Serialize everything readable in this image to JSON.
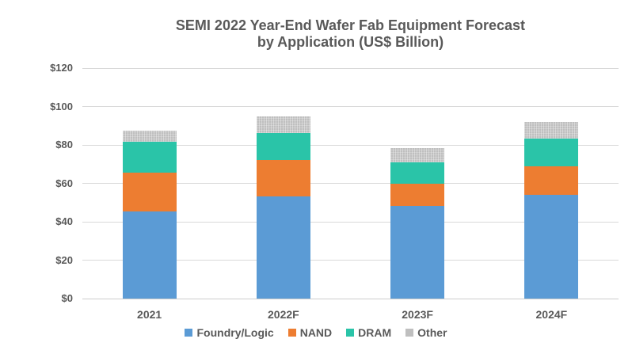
{
  "title": {
    "line1": "SEMI 2022 Year-End Wafer Fab Equipment Forecast",
    "line2": "by Application (US$ Billion)"
  },
  "colors": {
    "title_text": "#595959",
    "axis_text": "#595959",
    "gridline": "#D9D9D9",
    "background": "#FFFFFF",
    "foundry_logic": "#5B9BD5",
    "nand": "#ED7D31",
    "dram": "#2AC4A8",
    "other": "#BFBFBF"
  },
  "chart_data": {
    "type": "bar",
    "stacked": true,
    "title": "SEMI 2022 Year-End Wafer Fab Equipment Forecast by Application (US$ Billion)",
    "categories": [
      "2021",
      "2022F",
      "2023F",
      "2024F"
    ],
    "series": [
      {
        "name": "Foundry/Logic",
        "color": "#5B9BD5",
        "pattern": false,
        "values": [
          45.5,
          53.0,
          48.4,
          54.0
        ]
      },
      {
        "name": "NAND",
        "color": "#ED7D31",
        "pattern": false,
        "values": [
          20.0,
          19.0,
          11.5,
          15.0
        ]
      },
      {
        "name": "DRAM",
        "color": "#2AC4A8",
        "pattern": false,
        "values": [
          16.0,
          14.3,
          11.0,
          14.5
        ]
      },
      {
        "name": "Other",
        "color": "#BFBFBF",
        "pattern": true,
        "values": [
          6.0,
          8.5,
          7.3,
          8.5
        ]
      }
    ],
    "totals": [
      87.5,
      94.8,
      78.2,
      92.0
    ],
    "xlabel": "",
    "ylabel": "",
    "ylim": [
      0,
      120
    ],
    "ytick_step": 20,
    "ytick_labels": [
      "$0",
      "$20",
      "$40",
      "$60",
      "$80",
      "$100",
      "$120"
    ],
    "grid": true,
    "legend_position": "bottom"
  }
}
